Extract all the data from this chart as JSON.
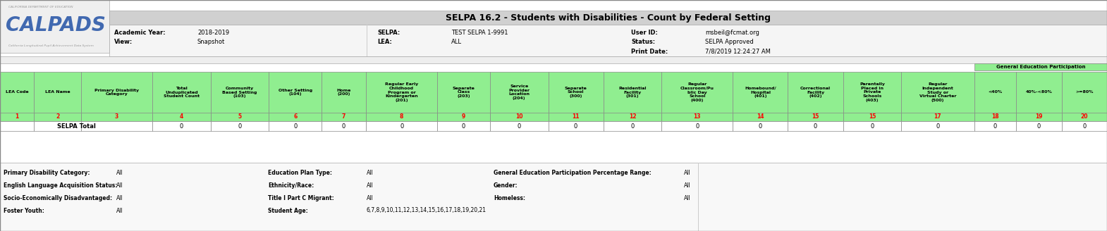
{
  "title": "SELPA 16.2 - Students with Disabilities - Count by Federal Setting",
  "header_row1": [
    "Academic Year:",
    "2018-2019",
    "SELPA:",
    "TEST SELPA 1-9991",
    "User ID:",
    "msbeil@fcmat.org"
  ],
  "header_row2": [
    "View:",
    "Snapshot",
    "LEA:",
    "ALL",
    "Status:",
    "SELPA Approved"
  ],
  "header_row3": [
    "",
    "",
    "",
    "",
    "Print Date:",
    "7/8/2019 12:24:27 AM"
  ],
  "col_header_texts": [
    "LEA Code",
    "LEA Name",
    "Primary Disability\nCategory",
    "Total\nUnduplicated\nStudent Count",
    "Community\nBased Setting\n(103)",
    "Other Setting\n(104)",
    "Home\n(200)",
    "Regular Early\nChildhood\nProgram or\nKindergarten\n(201)",
    "Separate\nClass\n(203)",
    "Service\nProvider\nLocation\n(204)",
    "Separate\nSchool\n(300)",
    "Residential\nFacility\n(301)",
    "Regular\nClassroom/Pu\nblic Day\nSchool\n(400)",
    "Homebound/\nHospital\n(401)",
    "Correctional\nFacility\n(402)",
    "Parentally\nPlaced in\nPrivate\nSchools\n(403)",
    "Regular\nIndependent\nStudy or\nVirtual Charter\n(500)",
    "<40%",
    "40%-<80%",
    ">=80%"
  ],
  "col_numbers": [
    "1",
    "2",
    "3",
    "4",
    "5",
    "6",
    "7",
    "8",
    "9",
    "10",
    "11",
    "12",
    "13",
    "14",
    "15",
    "15",
    "17",
    "18",
    "19",
    "20"
  ],
  "col_widths_rel": [
    42,
    58,
    88,
    72,
    72,
    65,
    55,
    88,
    65,
    72,
    68,
    72,
    88,
    68,
    68,
    72,
    90,
    52,
    56,
    56
  ],
  "data_vals": [
    "",
    "",
    "SELPA Total",
    "0",
    "0",
    "0",
    "0",
    "0",
    "0",
    "0",
    "0",
    "0",
    "0",
    "0",
    "0",
    "0",
    "0",
    "0",
    "0",
    "0"
  ],
  "footer_rows": [
    [
      "Primary Disability Category:",
      "All",
      "Education Plan Type:",
      "All",
      "General Education Participation Percentage Range:",
      "All"
    ],
    [
      "English Language Acquisition Status:",
      "All",
      "Ethnicity/Race:",
      "All",
      "Gender:",
      "All"
    ],
    [
      "Socio-Economically Disadvantaged:",
      "All",
      "Title I Part C Migrant:",
      "All",
      "Homeless:",
      "All"
    ],
    [
      "Foster Youth:",
      "All",
      "Student Age:",
      "6,7,8,9,10,11,12,13,14,15,16,17,18,19,20,21",
      "",
      ""
    ]
  ],
  "green": "#90EE90",
  "white": "#FFFFFF",
  "light_gray_bg": "#F2F2F2",
  "title_bg": "#D4D4D4",
  "logo_bg": "#EFEFEF",
  "border": "#AAAAAA",
  "black": "#000000",
  "red": "#FF0000",
  "footer_bg": "#F8F8F8",
  "gen_ed_green": "#90EE90"
}
